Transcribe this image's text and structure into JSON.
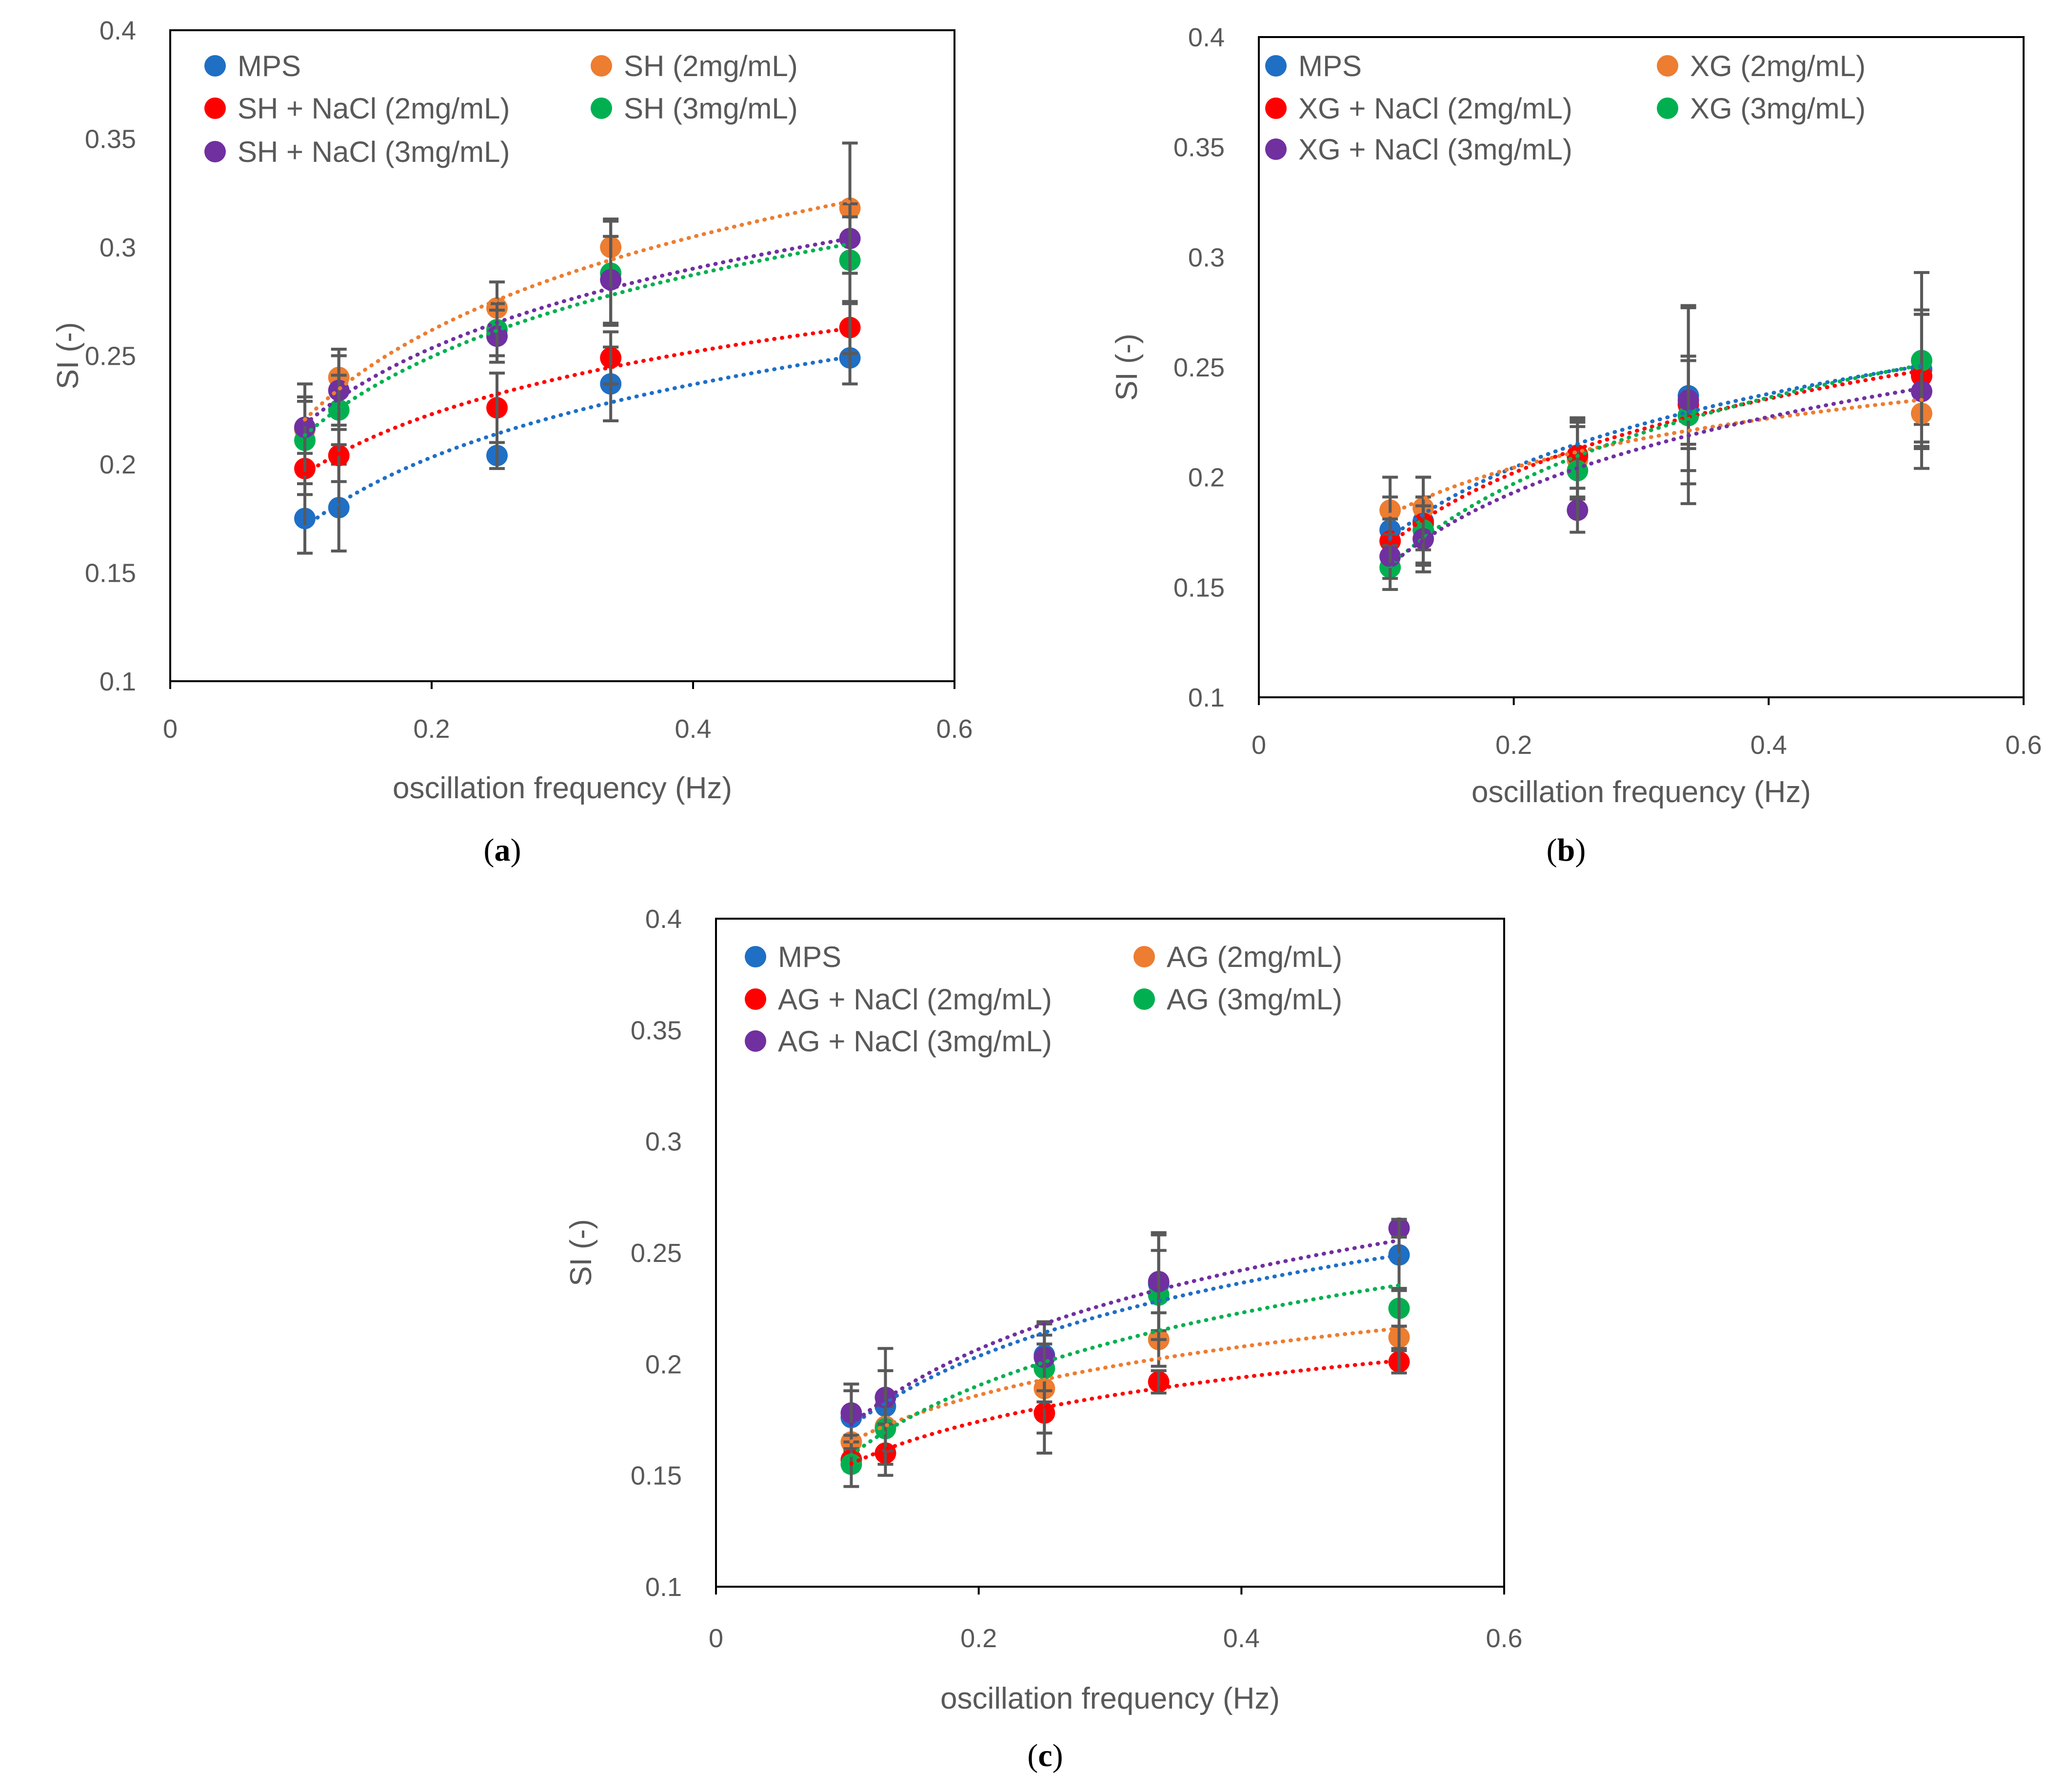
{
  "chart_data": [
    {
      "id": "a",
      "type": "scatter",
      "panel_label": [
        "(",
        "a",
        ")"
      ],
      "xlabel": "oscillation frequency (Hz)",
      "ylabel": "SI (-)",
      "xlim": [
        0,
        0.6
      ],
      "ylim": [
        0.1,
        0.4
      ],
      "x_tick_values": [
        0,
        0.2,
        0.4,
        0.6
      ],
      "x_tick_labels": [
        "0",
        "0.2",
        "0.4",
        "0.6"
      ],
      "y_tick_values": [
        0.1,
        0.15,
        0.2,
        0.25,
        0.3,
        0.35,
        0.4
      ],
      "y_tick_labels": [
        "0.1",
        "0.15",
        "0.2",
        "0.25",
        "0.3",
        "0.35",
        "0.4"
      ],
      "trendline": "logarithmic",
      "legend": "top-left, two columns",
      "x": [
        0.103,
        0.129,
        0.25,
        0.337,
        0.52
      ],
      "series": [
        {
          "name": "MPS",
          "color": "#1f6fc5",
          "values": [
            0.175,
            0.18,
            0.204,
            0.237,
            0.249
          ],
          "errors": [
            0.016,
            0.02,
            0.006,
            0.017,
            0.012
          ]
        },
        {
          "name": "SH (2mg/mL)",
          "color": "#ed7d31",
          "values": [
            0.216,
            0.24,
            0.272,
            0.3,
            0.318
          ],
          "errors": [
            0.021,
            0.013,
            0.012,
            0.013,
            0.03
          ]
        },
        {
          "name": "SH + NaCl (2mg/mL)",
          "color": "#ff0000",
          "values": [
            0.198,
            0.204,
            0.226,
            0.249,
            0.263
          ],
          "errors": [
            0.012,
            0.012,
            0.016,
            0.012,
            0.012
          ]
        },
        {
          "name": "SH (3mg/mL)",
          "color": "#00b050",
          "values": [
            0.211,
            0.225,
            0.262,
            0.288,
            0.294
          ],
          "errors": [
            0.02,
            0.016,
            0.012,
            0.024,
            0.02
          ]
        },
        {
          "name": "SH + NaCl (3mg/mL)",
          "color": "#7030a0",
          "values": [
            0.217,
            0.234,
            0.259,
            0.285,
            0.304
          ],
          "errors": [
            0.012,
            0.016,
            0.012,
            0.02,
            0.016
          ]
        }
      ]
    },
    {
      "id": "b",
      "type": "scatter",
      "panel_label": [
        "(",
        "b",
        ")"
      ],
      "xlabel": "oscillation frequency (Hz)",
      "ylabel": "SI (-)",
      "xlim": [
        0,
        0.6
      ],
      "ylim": [
        0.1,
        0.4
      ],
      "x_tick_values": [
        0,
        0.2,
        0.4,
        0.6
      ],
      "x_tick_labels": [
        "0",
        "0.2",
        "0.4",
        "0.6"
      ],
      "y_tick_values": [
        0.1,
        0.15,
        0.2,
        0.25,
        0.3,
        0.35,
        0.4
      ],
      "y_tick_labels": [
        "0.1",
        "0.15",
        "0.2",
        "0.25",
        "0.3",
        "0.35",
        "0.4"
      ],
      "trendline": "logarithmic",
      "legend": "top-left, two columns",
      "x": [
        0.103,
        0.129,
        0.25,
        0.337,
        0.52
      ],
      "series": [
        {
          "name": "MPS",
          "color": "#1f6fc5",
          "values": [
            0.176,
            0.18,
            0.209,
            0.237,
            0.249
          ],
          "errors": [
            0.015,
            0.02,
            0.018,
            0.04,
            0.025
          ]
        },
        {
          "name": "XG (2mg/mL)",
          "color": "#ed7d31",
          "values": [
            0.185,
            0.186,
            0.208,
            0.233,
            0.229
          ],
          "errors": [
            0.015,
            0.014,
            0.018,
            0.045,
            0.015
          ]
        },
        {
          "name": "XG + NaCl (2mg/mL)",
          "color": "#ff0000",
          "values": [
            0.171,
            0.179,
            0.21,
            0.233,
            0.246
          ],
          "errors": [
            0.01,
            0.012,
            0.015,
            0.02,
            0.03
          ]
        },
        {
          "name": "XG (3mg/mL)",
          "color": "#00b050",
          "values": [
            0.159,
            0.176,
            0.203,
            0.228,
            0.253
          ],
          "errors": [
            0.01,
            0.015,
            0.02,
            0.025,
            0.04
          ]
        },
        {
          "name": "XG + NaCl (3mg/mL)",
          "color": "#7030a0",
          "values": [
            0.164,
            0.172,
            0.185,
            0.235,
            0.239
          ],
          "errors": [
            0.01,
            0.015,
            0.01,
            0.02,
            0.035
          ]
        }
      ]
    },
    {
      "id": "c",
      "type": "scatter",
      "panel_label": [
        "(",
        "c",
        ")"
      ],
      "xlabel": "oscillation frequency (Hz)",
      "ylabel": "SI (-)",
      "xlim": [
        0,
        0.6
      ],
      "ylim": [
        0.1,
        0.4
      ],
      "x_tick_values": [
        0,
        0.2,
        0.4,
        0.6
      ],
      "x_tick_labels": [
        "0",
        "0.2",
        "0.4",
        "0.6"
      ],
      "y_tick_values": [
        0.1,
        0.15,
        0.2,
        0.25,
        0.3,
        0.35,
        0.4
      ],
      "y_tick_labels": [
        "0.1",
        "0.15",
        "0.2",
        "0.25",
        "0.3",
        "0.35",
        "0.4"
      ],
      "trendline": "logarithmic",
      "legend": "top-left, two columns",
      "x": [
        0.103,
        0.129,
        0.25,
        0.337,
        0.52
      ],
      "series": [
        {
          "name": "MPS",
          "color": "#1f6fc5",
          "values": [
            0.176,
            0.181,
            0.204,
            0.236,
            0.249
          ],
          "errors": [
            0.015,
            0.026,
            0.015,
            0.022,
            0.015
          ]
        },
        {
          "name": "AG (2mg/mL)",
          "color": "#ed7d31",
          "values": [
            0.165,
            0.172,
            0.189,
            0.211,
            0.212
          ],
          "errors": [
            0.01,
            0.01,
            0.02,
            0.012,
            0.005
          ]
        },
        {
          "name": "AG + NaCl (2mg/mL)",
          "color": "#ff0000",
          "values": [
            0.157,
            0.16,
            0.178,
            0.192,
            0.201
          ],
          "errors": [
            0.005,
            0.01,
            0.018,
            0.005,
            0.005
          ]
        },
        {
          "name": "AG (3mg/mL)",
          "color": "#00b050",
          "values": [
            0.155,
            0.171,
            0.198,
            0.231,
            0.225
          ],
          "errors": [
            0.01,
            0.01,
            0.015,
            0.02,
            0.008
          ]
        },
        {
          "name": "AG + NaCl (3mg/mL)",
          "color": "#7030a0",
          "values": [
            0.178,
            0.185,
            0.203,
            0.237,
            0.261
          ],
          "errors": [
            0.01,
            0.012,
            0.015,
            0.022,
            0.004
          ]
        }
      ]
    }
  ]
}
